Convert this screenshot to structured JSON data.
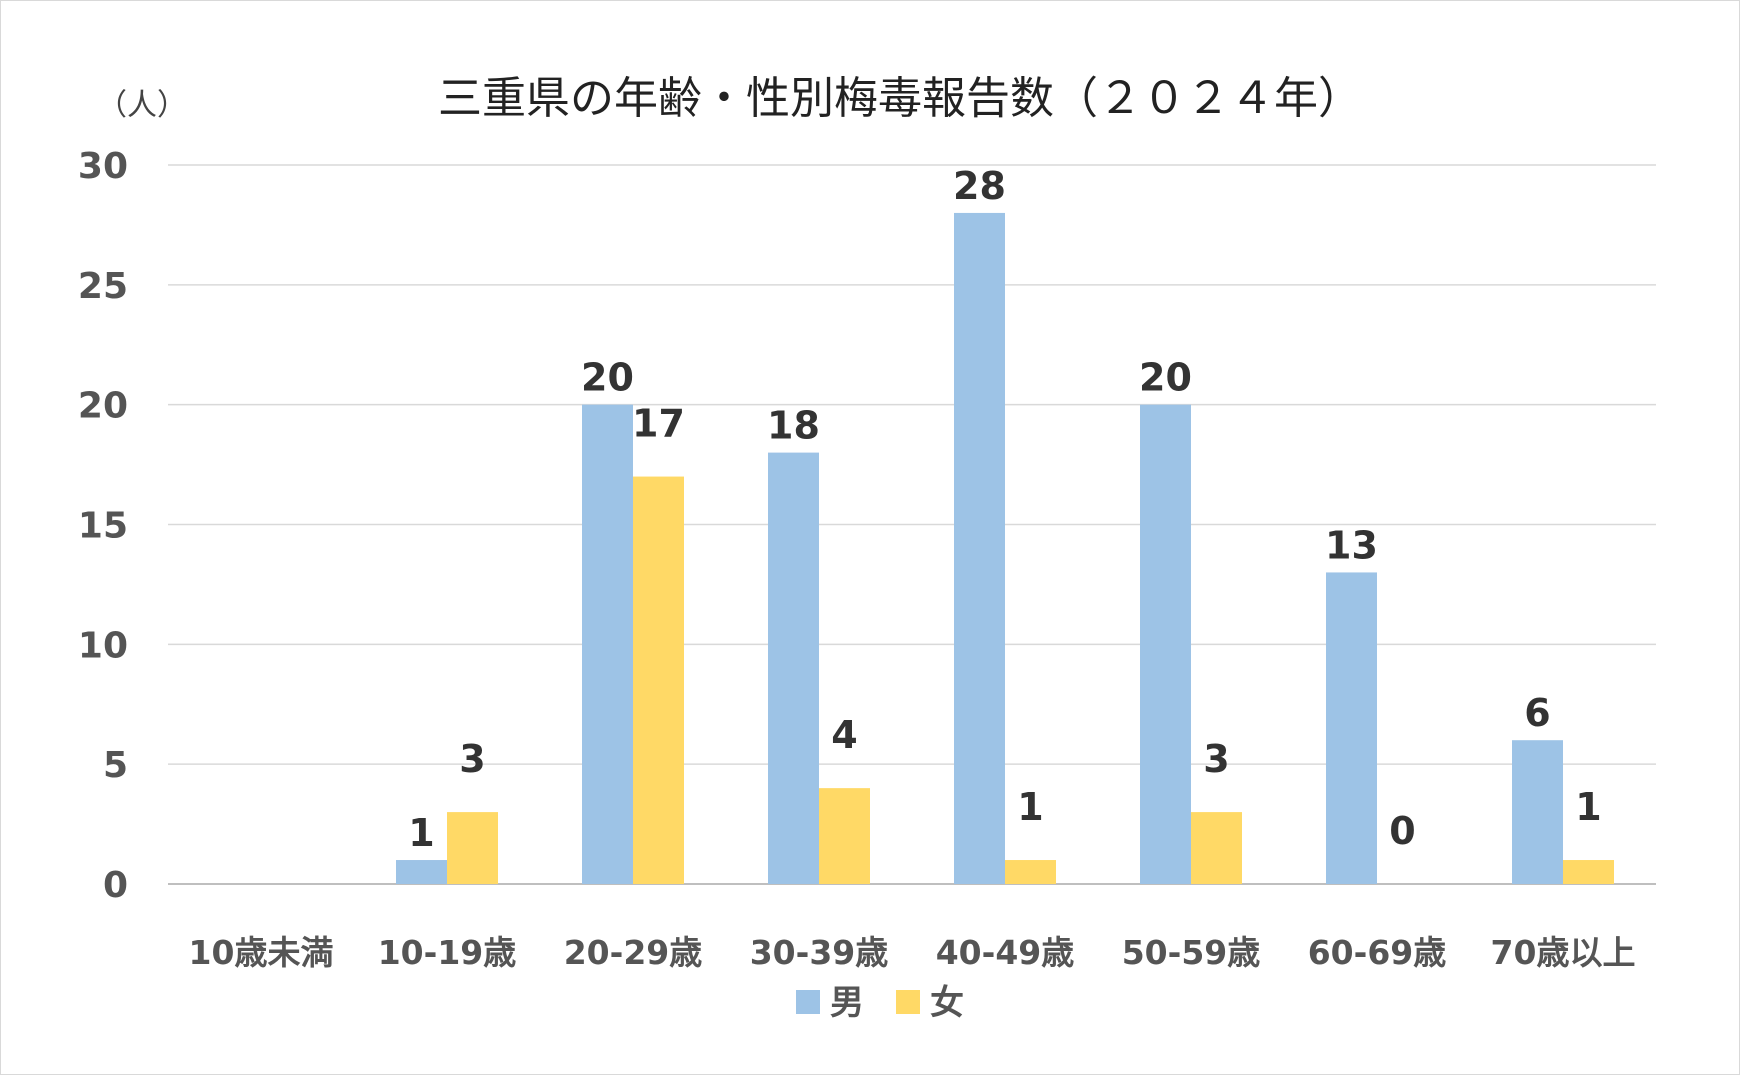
{
  "chart_data": {
    "type": "bar",
    "title": "三重県の年齢・性別梅毒報告数（２０２４年）",
    "ylabel": "（人）",
    "xlabel": "",
    "ylim": [
      0,
      30
    ],
    "yticks": [
      "0",
      "5",
      "10",
      "15",
      "20",
      "25",
      "30"
    ],
    "grid": true,
    "legend_position": "bottom",
    "categories": [
      "10歳未満",
      "10-19歳",
      "20-29歳",
      "30-39歳",
      "40-49歳",
      "50-59歳",
      "60-69歳",
      "70歳以上"
    ],
    "series": [
      {
        "name": "男",
        "color": "#9dc3e6",
        "values": [
          null,
          1,
          20,
          18,
          28,
          20,
          13,
          6
        ]
      },
      {
        "name": "女",
        "color": "#ffd966",
        "values": [
          null,
          3,
          17,
          4,
          1,
          3,
          0,
          1
        ]
      }
    ]
  }
}
